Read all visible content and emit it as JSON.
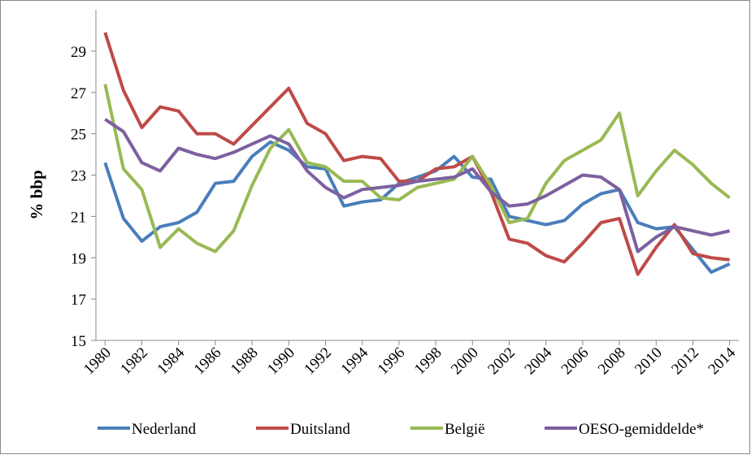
{
  "chart_data": {
    "type": "line",
    "y_label": "% bbp",
    "x": [
      1980,
      1981,
      1982,
      1983,
      1984,
      1985,
      1986,
      1987,
      1988,
      1989,
      1990,
      1991,
      1992,
      1993,
      1994,
      1995,
      1996,
      1997,
      1998,
      1999,
      2000,
      2001,
      2002,
      2003,
      2004,
      2005,
      2006,
      2007,
      2008,
      2009,
      2010,
      2011,
      2012,
      2013,
      2014
    ],
    "xlim": [
      1979.5,
      2014.5
    ],
    "xticks": [
      1980,
      1982,
      1984,
      1986,
      1988,
      1990,
      1992,
      1994,
      1996,
      1998,
      2000,
      2002,
      2004,
      2006,
      2008,
      2010,
      2012,
      2014
    ],
    "ylim": [
      15,
      31
    ],
    "yticks": [
      15,
      17,
      19,
      21,
      23,
      25,
      27,
      29
    ],
    "legend": "bottom",
    "series": [
      {
        "name": "Nederland",
        "color": "#4a7ebb",
        "values": [
          23.6,
          20.9,
          19.8,
          20.5,
          20.7,
          21.2,
          22.6,
          22.7,
          23.9,
          24.6,
          24.2,
          23.4,
          23.3,
          21.5,
          21.7,
          21.8,
          22.6,
          22.9,
          23.2,
          23.9,
          22.9,
          22.8,
          21.0,
          20.8,
          20.6,
          20.8,
          21.6,
          22.1,
          22.3,
          20.7,
          20.4,
          20.5,
          19.4,
          18.3,
          18.7
        ]
      },
      {
        "name": "Duitsland",
        "color": "#be4b48",
        "values": [
          29.9,
          27.1,
          25.3,
          26.3,
          26.1,
          25.0,
          25.0,
          24.5,
          25.4,
          26.3,
          27.2,
          25.5,
          25.0,
          23.7,
          23.9,
          23.8,
          22.7,
          22.7,
          23.3,
          23.4,
          23.9,
          22.2,
          19.9,
          19.7,
          19.1,
          18.8,
          19.7,
          20.7,
          20.9,
          18.2,
          19.5,
          20.6,
          19.2,
          19.0,
          18.9
        ]
      },
      {
        "name": "België",
        "color": "#98b954",
        "values": [
          27.4,
          23.3,
          22.3,
          19.5,
          20.4,
          19.7,
          19.3,
          20.3,
          22.5,
          24.3,
          25.2,
          23.6,
          23.4,
          22.7,
          22.7,
          21.9,
          21.8,
          22.4,
          22.6,
          22.8,
          23.9,
          22.5,
          20.7,
          20.9,
          22.6,
          23.7,
          24.2,
          24.7,
          26.0,
          22.0,
          23.2,
          24.2,
          23.5,
          22.6,
          21.9
        ]
      },
      {
        "name": "OESO-gemiddelde*",
        "color": "#7d60a0",
        "values": [
          25.7,
          25.1,
          23.6,
          23.2,
          24.3,
          24.0,
          23.8,
          24.1,
          24.5,
          24.9,
          24.5,
          23.2,
          22.4,
          21.9,
          22.3,
          22.4,
          22.5,
          22.7,
          22.8,
          22.9,
          23.3,
          22.2,
          21.5,
          21.6,
          22.0,
          22.5,
          23.0,
          22.9,
          22.3,
          19.3,
          20.0,
          20.5,
          20.3,
          20.1,
          20.3
        ]
      }
    ]
  }
}
